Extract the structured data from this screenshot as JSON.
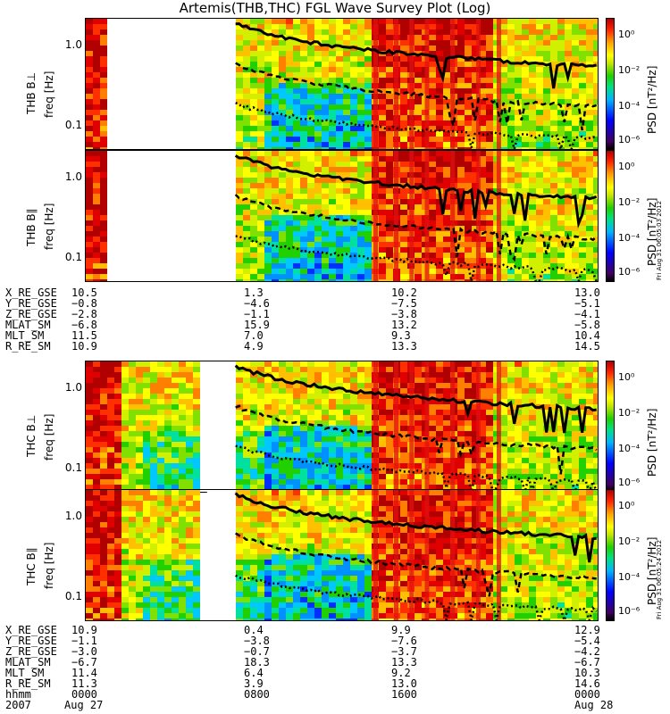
{
  "title": "Artemis(THB,THC) FGL Wave Survey Plot (Log)",
  "panels": [
    {
      "label": "THB B⊥",
      "ylabel": "freq [Hz]",
      "stamp": ""
    },
    {
      "label": "THB B∥",
      "ylabel": "freq [Hz]",
      "stamp": "Fri Aug 31 06:05:03 2012"
    },
    {
      "label": "THC B⊥",
      "ylabel": "freq [Hz]",
      "stamp": ""
    },
    {
      "label": "THC B∥",
      "ylabel": "freq [Hz]",
      "stamp": "Fri Aug 31 06:05:24 2012"
    }
  ],
  "yticks": [
    "1.0",
    "0.1"
  ],
  "colorbar": {
    "label": "PSD [nT²/Hz]",
    "ticks": [
      "10⁰",
      "10⁻²",
      "10⁻⁴",
      "10⁻⁶"
    ]
  },
  "ephem_thb": {
    "rows": [
      {
        "name": "X_RE_GSE",
        "values": [
          "10.5",
          "1.3",
          "10.2",
          "13.0"
        ]
      },
      {
        "name": "Y_RE_GSE",
        "values": [
          "−0.8",
          "−4.6",
          "−7.5",
          "−5.1"
        ]
      },
      {
        "name": "Z_RE_GSE",
        "values": [
          "−2.8",
          "−1.1",
          "−3.8",
          "−4.1"
        ]
      },
      {
        "name": "MLAT_SM",
        "values": [
          "−6.8",
          "15.9",
          "13.2",
          "−5.8"
        ]
      },
      {
        "name": "MLT_SM",
        "values": [
          "11.5",
          "7.0",
          "9.3",
          "10.4"
        ]
      },
      {
        "name": "R_RE_SM",
        "values": [
          "10.9",
          "4.9",
          "13.3",
          "14.5"
        ]
      }
    ]
  },
  "ephem_thc": {
    "rows": [
      {
        "name": "X_RE_GSE",
        "values": [
          "10.9",
          "0.4",
          "9.9",
          "12.9"
        ]
      },
      {
        "name": "Y_RE_GSE",
        "values": [
          "−1.1",
          "−3.8",
          "−7.6",
          "−5.4"
        ]
      },
      {
        "name": "Z_RE_GSE",
        "values": [
          "−3.0",
          "−0.7",
          "−3.7",
          "−4.2"
        ]
      },
      {
        "name": "MLAT_SM",
        "values": [
          "−6.7",
          "18.3",
          "13.3",
          "−6.7"
        ]
      },
      {
        "name": "MLT_SM",
        "values": [
          "11.4",
          "6.4",
          "9.2",
          "10.3"
        ]
      },
      {
        "name": "R_RE_SM",
        "values": [
          "11.3",
          "3.9",
          "13.0",
          "14.6"
        ]
      },
      {
        "name": "hhmm",
        "values": [
          "0000",
          "0800",
          "1600",
          "0000"
        ]
      }
    ]
  },
  "time_axis": {
    "year": "2007",
    "start_date": "Aug 27",
    "end_date": "Aug 28"
  },
  "chart_data": {
    "type": "heatmap",
    "title": "Artemis(THB,THC) FGL Wave Survey Plot (Log)",
    "x_time_hhmm": [
      "0000",
      "0800",
      "1600",
      "0000"
    ],
    "x_dates": [
      "2007 Aug 27",
      "2007 Aug 28"
    ],
    "y_scale": "log",
    "y_ticks_hz": [
      1.0,
      0.1
    ],
    "y_range_hz": [
      0.05,
      2.0
    ],
    "color_scale": "log",
    "color_ticks_nT2_per_Hz": [
      1,
      0.01,
      0.0001,
      1e-06
    ],
    "series": [
      {
        "name": "THB B⊥",
        "data_gaps_hhmm": [
          [
            "0115",
            "0700"
          ]
        ]
      },
      {
        "name": "THB B∥",
        "data_gaps_hhmm": [
          [
            "0115",
            "0700"
          ]
        ]
      },
      {
        "name": "THC B⊥",
        "data_gaps_hhmm": [
          [
            "0540",
            "0700"
          ]
        ]
      },
      {
        "name": "THC B∥",
        "data_gaps_hhmm": [
          [
            "0540",
            "0700"
          ]
        ]
      }
    ]
  }
}
